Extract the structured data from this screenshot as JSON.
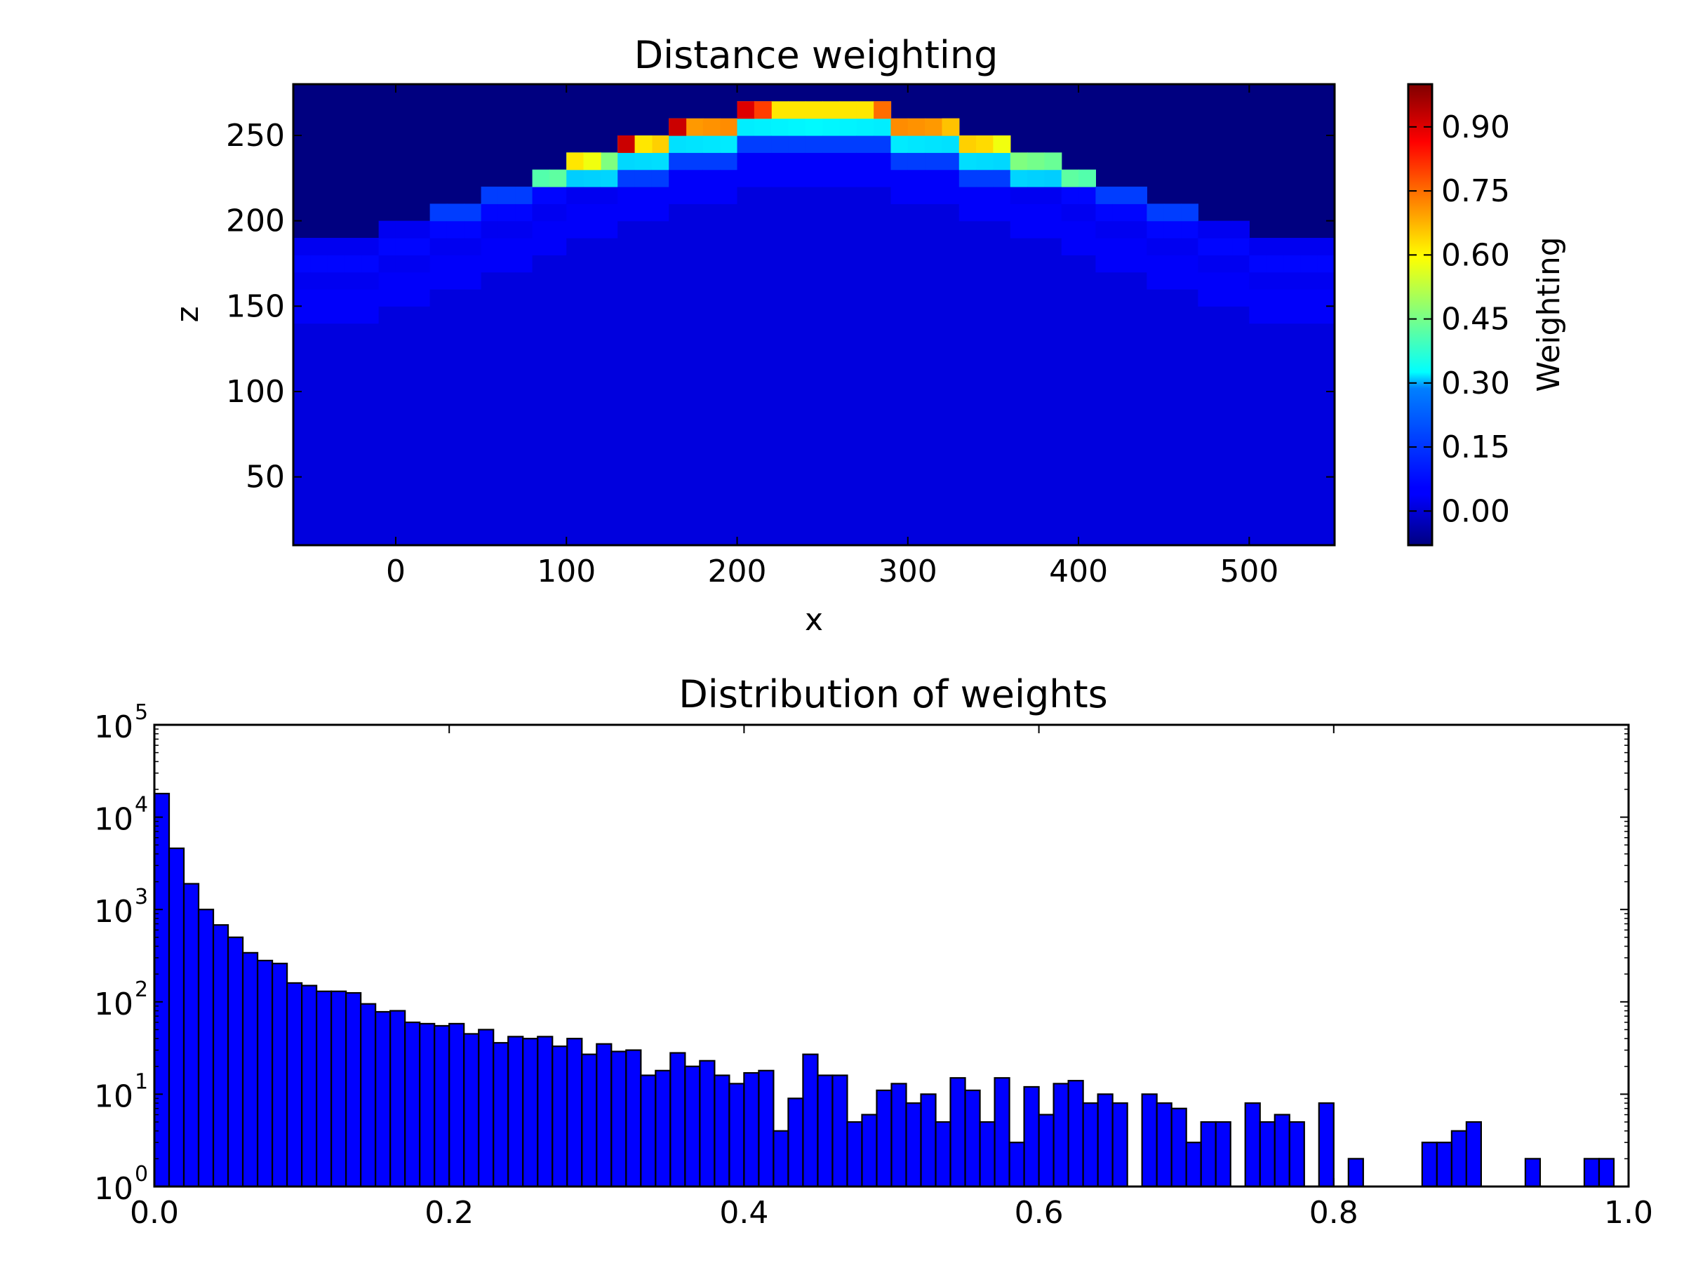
{
  "chart_data": [
    {
      "type": "heatmap",
      "title": "Distance weighting",
      "xlabel": "x",
      "ylabel": "z",
      "xlim": [
        -60,
        550
      ],
      "ylim": [
        10,
        280
      ],
      "x_ticks": [
        "0",
        "100",
        "200",
        "300",
        "400",
        "500"
      ],
      "y_ticks": [
        "50",
        "100",
        "150",
        "200",
        "250"
      ],
      "colormap": "jet",
      "colorbar": {
        "label": "Weighting",
        "range": [
          -0.08,
          1.0
        ],
        "ticks": [
          "0.00",
          "0.15",
          "0.30",
          "0.45",
          "0.60",
          "0.75",
          "0.90"
        ]
      },
      "description_values": {
        "cell_size": [
          10,
          10
        ],
        "grid_top_profile": [
          {
            "x": [
              -60,
              -10
            ],
            "z_top": 190
          },
          {
            "x": [
              -10,
              20
            ],
            "z_top": 200
          },
          {
            "x": [
              20,
              50
            ],
            "z_top": 210
          },
          {
            "x": [
              50,
              80
            ],
            "z_top": 220
          },
          {
            "x": [
              80,
              100
            ],
            "z_top": 230
          },
          {
            "x": [
              100,
              130
            ],
            "z_top": 240
          },
          {
            "x": [
              130,
              160
            ],
            "z_top": 250
          },
          {
            "x": [
              160,
              200
            ],
            "z_top": 260
          },
          {
            "x": [
              200,
              290
            ],
            "z_top": 270
          },
          {
            "x": [
              290,
              330
            ],
            "z_top": 260
          },
          {
            "x": [
              330,
              360
            ],
            "z_top": 250
          },
          {
            "x": [
              360,
              390
            ],
            "z_top": 240
          },
          {
            "x": [
              390,
              410
            ],
            "z_top": 230
          },
          {
            "x": [
              410,
              440
            ],
            "z_top": 220
          },
          {
            "x": [
              440,
              470
            ],
            "z_top": 210
          },
          {
            "x": [
              470,
              500
            ],
            "z_top": 200
          },
          {
            "x": [
              500,
              550
            ],
            "z_top": 190
          }
        ],
        "background_value": -0.08,
        "bulk_value": 0.02
      }
    },
    {
      "type": "bar",
      "title": "Distribution of weights",
      "xlabel": "",
      "ylabel": "",
      "xlim": [
        0.0,
        1.0
      ],
      "ylim": [
        1,
        100000
      ],
      "yscale": "log",
      "x_ticks": [
        "0.0",
        "0.2",
        "0.4",
        "0.6",
        "0.8",
        "1.0"
      ],
      "y_ticks": [
        {
          "base": "10",
          "exp": "0"
        },
        {
          "base": "10",
          "exp": "1"
        },
        {
          "base": "10",
          "exp": "2"
        },
        {
          "base": "10",
          "exp": "3"
        },
        {
          "base": "10",
          "exp": "4"
        },
        {
          "base": "10",
          "exp": "5"
        }
      ],
      "bin_width": 0.01,
      "bin_start": 0.0,
      "values": [
        18000,
        4600,
        1900,
        1000,
        680,
        500,
        340,
        280,
        260,
        160,
        150,
        130,
        130,
        125,
        95,
        78,
        80,
        60,
        58,
        55,
        58,
        45,
        50,
        36,
        42,
        40,
        42,
        33,
        40,
        27,
        35,
        29,
        30,
        16,
        18,
        28,
        20,
        23,
        16,
        13,
        17,
        18,
        4,
        9,
        27,
        16,
        16,
        5,
        6,
        11,
        13,
        8,
        10,
        5,
        15,
        11,
        5,
        15,
        3,
        12,
        6,
        13,
        14,
        8,
        10,
        8,
        0,
        10,
        8,
        7,
        3,
        5,
        5,
        0,
        8,
        5,
        6,
        5,
        0,
        8,
        0,
        2,
        0,
        0,
        0,
        0,
        3,
        3,
        4,
        5,
        0,
        0,
        0,
        2,
        0,
        0,
        0,
        2,
        2,
        0
      ],
      "bar_color": "#0000ff"
    }
  ]
}
